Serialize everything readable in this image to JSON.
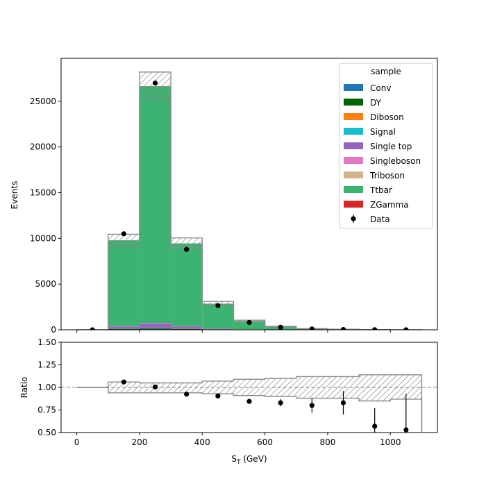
{
  "chart_data": {
    "type": "bar",
    "stacked": true,
    "x": {
      "label": "S$_T$ (GeV)",
      "label_main": "S",
      "label_sub": "T",
      "label_unit": " (GeV)",
      "lim": [
        -50,
        1150
      ],
      "ticks": [
        0,
        200,
        400,
        600,
        800,
        1000
      ],
      "tick_labels": [
        "0",
        "200",
        "400",
        "600",
        "800",
        "1000"
      ]
    },
    "bins": [
      0,
      100,
      200,
      300,
      400,
      500,
      600,
      700,
      800,
      900,
      1000,
      1100
    ],
    "top_panel": {
      "ylabel": "Events",
      "ylim": [
        0,
        29700
      ],
      "yticks": [
        0,
        5000,
        10000,
        15000,
        20000,
        25000
      ],
      "ytick_labels": [
        "0",
        "5000",
        "10000",
        "15000",
        "20000",
        "25000"
      ],
      "series": [
        {
          "name": "Conv",
          "color": "#1f77b4",
          "values": [
            0,
            40,
            80,
            40,
            15,
            5,
            2,
            1,
            0,
            0,
            0
          ]
        },
        {
          "name": "DY",
          "color": "#006400",
          "values": [
            0,
            60,
            90,
            50,
            20,
            8,
            3,
            1,
            0,
            0,
            0
          ]
        },
        {
          "name": "Diboson",
          "color": "#ff7f0e",
          "values": [
            0,
            10,
            20,
            15,
            8,
            4,
            2,
            1,
            0,
            0,
            0
          ]
        },
        {
          "name": "Signal",
          "color": "#17becf",
          "values": [
            0,
            5,
            10,
            10,
            6,
            3,
            2,
            1,
            0,
            0,
            0
          ]
        },
        {
          "name": "Single top",
          "color": "#9467bd",
          "values": [
            0,
            250,
            500,
            260,
            80,
            25,
            10,
            3,
            1,
            0,
            0
          ]
        },
        {
          "name": "Singleboson",
          "color": "#e377c2",
          "values": [
            0,
            20,
            30,
            20,
            10,
            5,
            2,
            1,
            0,
            0,
            0
          ]
        },
        {
          "name": "Triboson",
          "color": "#d2b48c",
          "values": [
            0,
            1,
            2,
            2,
            1,
            1,
            0,
            0,
            0,
            0,
            0
          ]
        },
        {
          "name": "Ttbar",
          "color": "#3cb371",
          "values": [
            0,
            9400,
            25900,
            9050,
            2710,
            890,
            300,
            110,
            40,
            20,
            0
          ]
        },
        {
          "name": "ZGamma",
          "color": "#d62728",
          "values": [
            0,
            10,
            20,
            10,
            5,
            2,
            1,
            0,
            0,
            0,
            0
          ]
        }
      ],
      "uncertainty": {
        "down": [
          0,
          9150,
          25300,
          8950,
          2750,
          910,
          300,
          100,
          40,
          15,
          0
        ],
        "up": [
          0,
          10450,
          28200,
          10050,
          3100,
          1050,
          370,
          140,
          60,
          25,
          5
        ]
      },
      "data": {
        "name": "Data",
        "x": [
          50,
          150,
          250,
          350,
          450,
          550,
          650,
          750,
          850,
          950,
          1050
        ],
        "y": [
          0,
          10500,
          27000,
          8800,
          2650,
          800,
          280,
          95,
          35,
          12,
          2
        ]
      },
      "legend": {
        "title": "sample",
        "placement": "upper right"
      }
    },
    "bottom_panel": {
      "ylabel": "Ratio",
      "ylim": [
        0.5,
        1.5
      ],
      "yticks": [
        0.5,
        0.75,
        1.0,
        1.25,
        1.5
      ],
      "ytick_labels": [
        "0.50",
        "0.75",
        "1.00",
        "1.25",
        "1.50"
      ],
      "reference_line": 1.0,
      "band": {
        "down": [
          1.0,
          0.94,
          0.94,
          0.94,
          0.93,
          0.91,
          0.9,
          0.88,
          0.88,
          0.85,
          0.87
        ],
        "up": [
          1.0,
          1.06,
          1.05,
          1.05,
          1.07,
          1.09,
          1.1,
          1.12,
          1.12,
          1.14,
          1.14
        ]
      },
      "points": {
        "x": [
          150,
          250,
          350,
          450,
          550,
          650,
          750,
          850,
          950,
          1050
        ],
        "y": [
          1.06,
          1.005,
          0.925,
          0.905,
          0.845,
          0.83,
          0.8,
          0.83,
          0.57,
          0.53
        ],
        "err_lo": [
          0.005,
          0.003,
          0.007,
          0.012,
          0.02,
          0.04,
          0.08,
          0.13,
          0.2,
          0.4
        ],
        "err_hi": [
          0.005,
          0.003,
          0.007,
          0.012,
          0.02,
          0.04,
          0.08,
          0.13,
          0.2,
          0.4
        ]
      }
    }
  }
}
